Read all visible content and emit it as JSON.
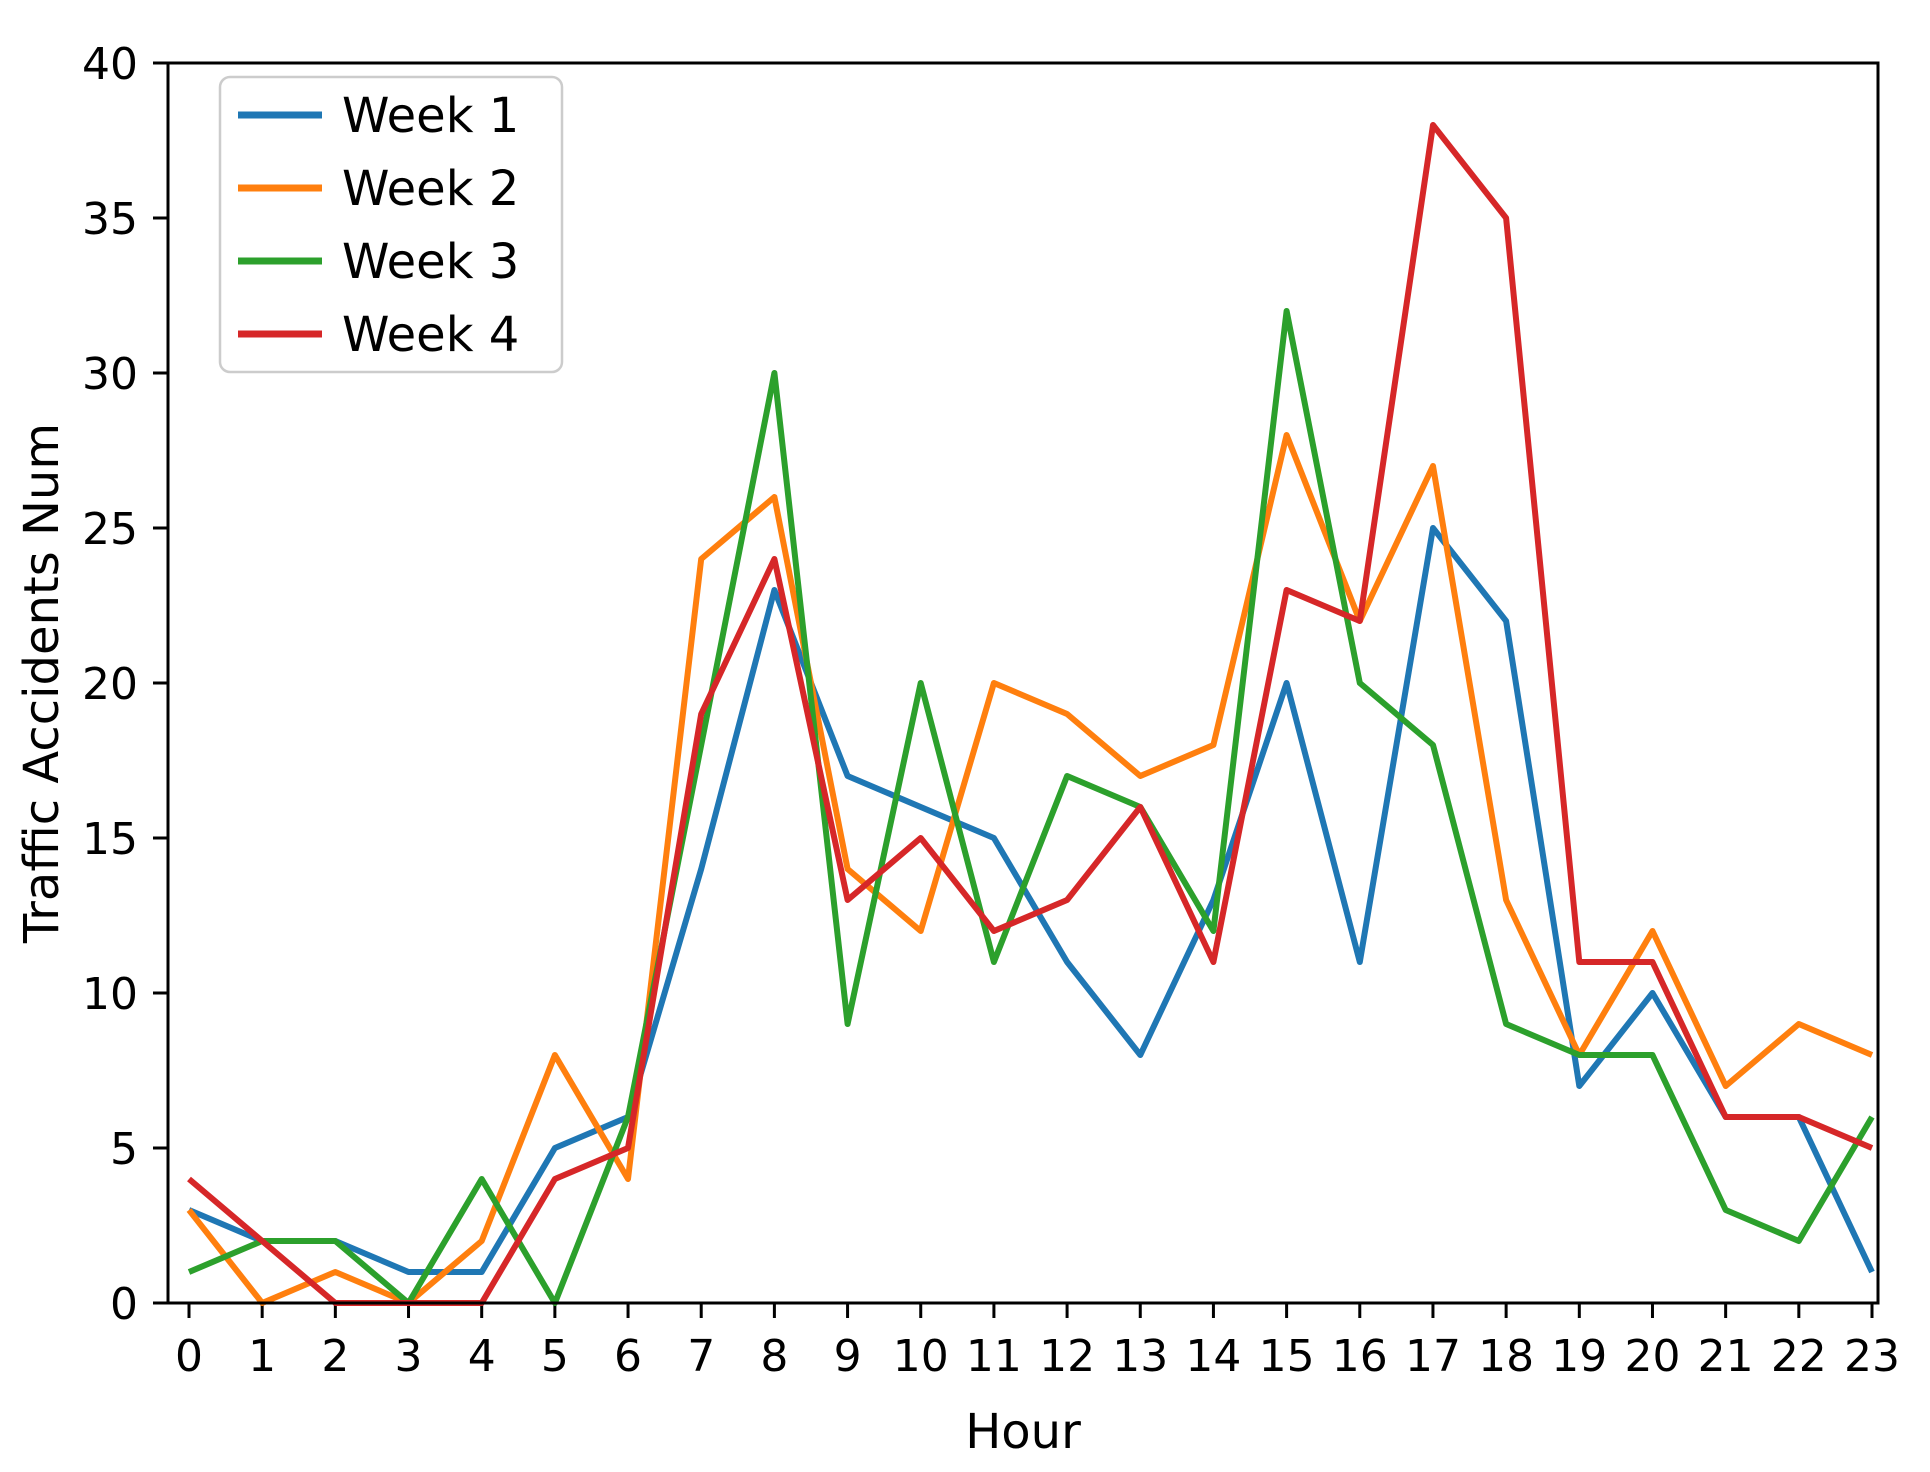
{
  "chart_data": {
    "type": "line",
    "title": "",
    "xlabel": "Hour",
    "ylabel": "Traffic Accidents Num",
    "x": [
      0,
      1,
      2,
      3,
      4,
      5,
      6,
      7,
      8,
      9,
      10,
      11,
      12,
      13,
      14,
      15,
      16,
      17,
      18,
      19,
      20,
      21,
      22,
      23
    ],
    "xtick_labels": [
      "0",
      "1",
      "2",
      "3",
      "4",
      "5",
      "6",
      "7",
      "8",
      "9",
      "10",
      "11",
      "12",
      "13",
      "14",
      "15",
      "16",
      "17",
      "18",
      "19",
      "20",
      "21",
      "22",
      "23"
    ],
    "yticks": [
      0,
      5,
      10,
      15,
      20,
      25,
      30,
      35,
      40
    ],
    "xlim": [
      0,
      23
    ],
    "ylim": [
      0,
      40
    ],
    "grid": false,
    "legend_position": "upper-left",
    "series": [
      {
        "name": "Week 1",
        "color": "#1f77b4",
        "values": [
          3,
          2,
          2,
          1,
          1,
          5,
          6,
          14,
          23,
          17,
          16,
          15,
          11,
          8,
          13,
          20,
          11,
          25,
          22,
          7,
          10,
          6,
          6,
          1
        ]
      },
      {
        "name": "Week 2",
        "color": "#ff7f0e",
        "values": [
          3,
          0,
          1,
          0,
          2,
          8,
          4,
          24,
          26,
          14,
          12,
          20,
          19,
          17,
          18,
          28,
          22,
          27,
          13,
          8,
          12,
          7,
          9,
          8
        ]
      },
      {
        "name": "Week 3",
        "color": "#2ca02c",
        "values": [
          1,
          2,
          2,
          0,
          4,
          0,
          6,
          18,
          30,
          9,
          20,
          11,
          17,
          16,
          12,
          32,
          20,
          18,
          9,
          8,
          8,
          3,
          2,
          6
        ]
      },
      {
        "name": "Week 4",
        "color": "#d62728",
        "values": [
          4,
          2,
          0,
          0,
          0,
          4,
          5,
          19,
          24,
          13,
          15,
          12,
          13,
          16,
          11,
          23,
          22,
          38,
          35,
          11,
          11,
          6,
          6,
          5
        ]
      }
    ]
  }
}
